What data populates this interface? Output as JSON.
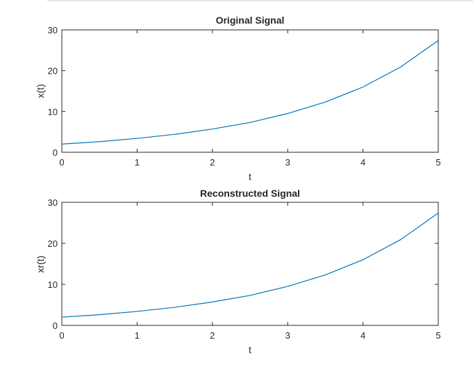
{
  "chart_data": [
    {
      "type": "line",
      "title": "Original Signal",
      "xlabel": "t",
      "ylabel": "x(t)",
      "xlim": [
        0,
        5
      ],
      "ylim": [
        0,
        30
      ],
      "xticks": [
        0,
        1,
        2,
        3,
        4,
        5
      ],
      "yticks": [
        0,
        10,
        20,
        30
      ],
      "grid": false,
      "line_color": "#0072BD",
      "x": [
        0,
        0.5,
        1,
        1.5,
        2,
        2.5,
        3,
        3.5,
        4,
        4.5,
        5
      ],
      "values": [
        2.0,
        2.6,
        3.4,
        4.4,
        5.7,
        7.3,
        9.5,
        12.3,
        16.0,
        20.9,
        27.4
      ]
    },
    {
      "type": "line",
      "title": "Reconstructed Signal",
      "xlabel": "t",
      "ylabel": "xr(t)",
      "xlim": [
        0,
        5
      ],
      "ylim": [
        0,
        30
      ],
      "xticks": [
        0,
        1,
        2,
        3,
        4,
        5
      ],
      "yticks": [
        0,
        10,
        20,
        30
      ],
      "grid": false,
      "line_color": "#0072BD",
      "x": [
        0,
        0.5,
        1,
        1.5,
        2,
        2.5,
        3,
        3.5,
        4,
        4.5,
        5
      ],
      "values": [
        2.0,
        2.6,
        3.4,
        4.4,
        5.7,
        7.3,
        9.5,
        12.3,
        16.0,
        20.9,
        27.4
      ]
    }
  ]
}
